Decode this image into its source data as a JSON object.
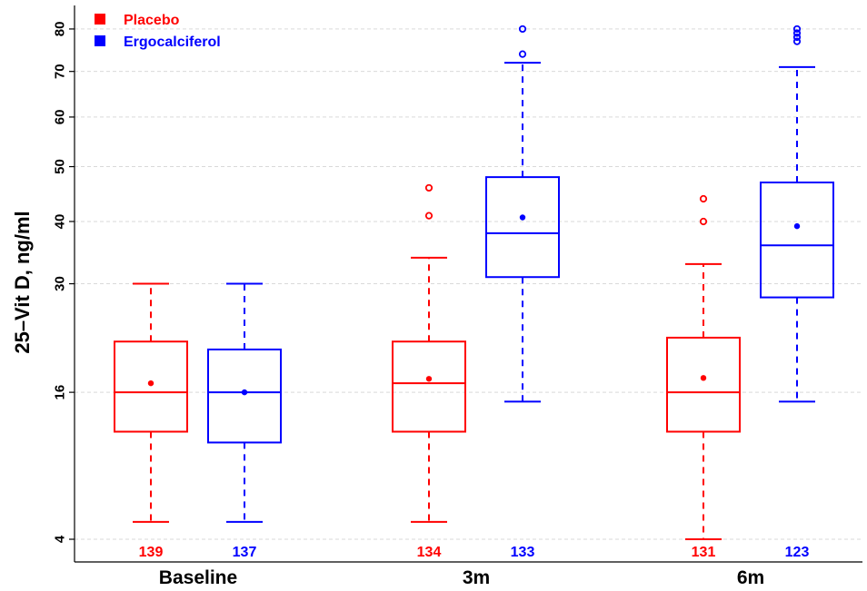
{
  "chart_data": {
    "type": "box",
    "ylabel": "25–Vit D, ng/ml",
    "xlabel": "",
    "categories": [
      "Baseline",
      "3m",
      "6m"
    ],
    "yticks": [
      4,
      16,
      30,
      40,
      50,
      60,
      70,
      80
    ],
    "grid": true,
    "legend_position": "top-left",
    "series": [
      {
        "name": "Placebo",
        "color": "#ff0000",
        "boxes": [
          {
            "category": "Baseline",
            "n": "139",
            "whisker_low": 5,
            "q1": 12,
            "median": 16,
            "q3": 22,
            "whisker_high": 30,
            "mean": 17,
            "outliers": []
          },
          {
            "category": "3m",
            "n": "134",
            "whisker_low": 5,
            "q1": 12,
            "median": 17,
            "q3": 22,
            "whisker_high": 34,
            "mean": 17.5,
            "outliers": [
              41,
              46
            ]
          },
          {
            "category": "6m",
            "n": "131",
            "whisker_low": 4,
            "q1": 12,
            "median": 16,
            "q3": 22.5,
            "whisker_high": 33,
            "mean": 17.6,
            "outliers": [
              40,
              44
            ]
          }
        ]
      },
      {
        "name": "Ergocalciferol",
        "color": "#0000ff",
        "boxes": [
          {
            "category": "Baseline",
            "n": "137",
            "whisker_low": 5,
            "q1": 11,
            "median": 16,
            "q3": 21,
            "whisker_high": 30,
            "mean": 16,
            "outliers": []
          },
          {
            "category": "3m",
            "n": "133",
            "whisker_low": 15,
            "q1": 31,
            "median": 38,
            "q3": 48,
            "whisker_high": 72,
            "mean": 40.7,
            "outliers": [
              74,
              80
            ]
          },
          {
            "category": "6m",
            "n": "123",
            "whisker_low": 15,
            "q1": 28,
            "median": 36,
            "q3": 47,
            "whisker_high": 71,
            "mean": 39.2,
            "outliers": [
              77,
              78,
              79,
              80
            ]
          }
        ]
      }
    ]
  }
}
